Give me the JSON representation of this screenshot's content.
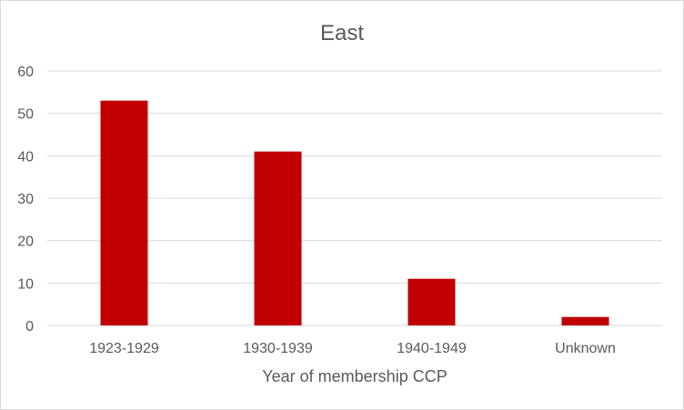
{
  "chart_data": {
    "type": "bar",
    "title": "East",
    "xlabel": "Year of membership CCP",
    "ylabel": "",
    "categories": [
      "1923-1929",
      "1930-1939",
      "1940-1949",
      "Unknown"
    ],
    "values": [
      53,
      41,
      11,
      2
    ],
    "ylim": [
      0,
      60
    ],
    "yticks": [
      0,
      10,
      20,
      30,
      40,
      50,
      60
    ],
    "grid": true,
    "legend": "none",
    "bar_color": "#C00000",
    "gridline_color": "#D9D9D9",
    "text_color": "#595959"
  }
}
